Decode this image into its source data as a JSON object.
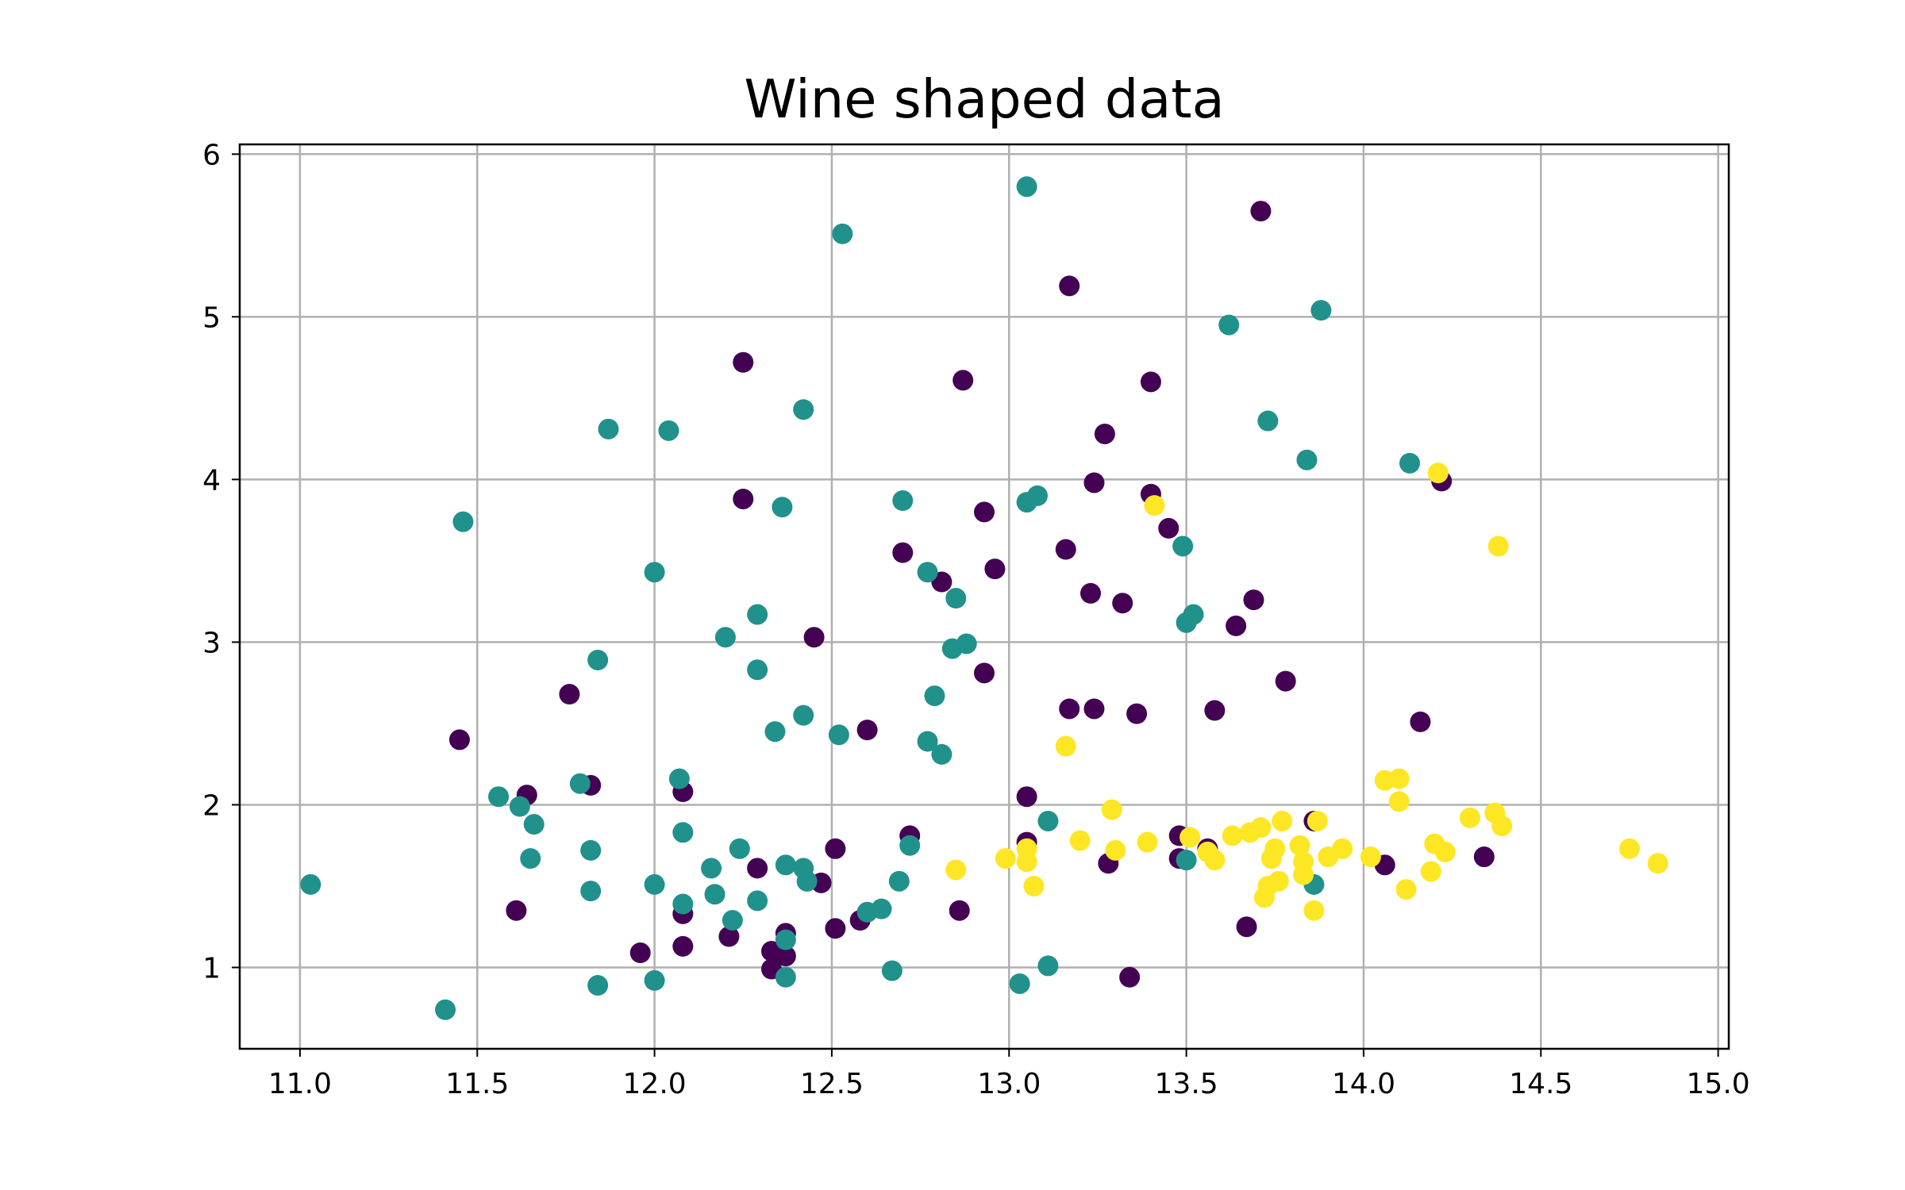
{
  "chart_data": {
    "type": "scatter",
    "title": "Wine shaped data",
    "xlabel": "",
    "ylabel": "",
    "xlim": [
      10.83,
      15.03
    ],
    "ylim": [
      0.5,
      6.06
    ],
    "xticks": [
      11.0,
      11.5,
      12.0,
      12.5,
      13.0,
      13.5,
      14.0,
      14.5,
      15.0
    ],
    "xtick_labels": [
      "11.0",
      "11.5",
      "12.0",
      "12.5",
      "13.0",
      "13.5",
      "14.0",
      "14.5",
      "15.0"
    ],
    "yticks": [
      1,
      2,
      3,
      4,
      5,
      6
    ],
    "ytick_labels": [
      "1",
      "2",
      "3",
      "4",
      "5",
      "6"
    ],
    "grid": true,
    "legend": "none",
    "series": [
      {
        "color": "#440154",
        "points": [
          [
            11.45,
            2.4
          ],
          [
            11.64,
            2.06
          ],
          [
            11.61,
            1.35
          ],
          [
            11.76,
            2.68
          ],
          [
            11.82,
            2.12
          ],
          [
            11.96,
            1.09
          ],
          [
            12.08,
            2.08
          ],
          [
            12.08,
            1.33
          ],
          [
            12.08,
            1.13
          ],
          [
            12.21,
            1.19
          ],
          [
            12.25,
            4.72
          ],
          [
            12.25,
            3.88
          ],
          [
            12.29,
            1.61
          ],
          [
            12.33,
            0.99
          ],
          [
            12.33,
            1.1
          ],
          [
            12.37,
            1.21
          ],
          [
            12.37,
            1.07
          ],
          [
            12.45,
            3.03
          ],
          [
            12.47,
            1.52
          ],
          [
            12.51,
            1.73
          ],
          [
            12.51,
            1.24
          ],
          [
            12.58,
            1.29
          ],
          [
            12.6,
            2.46
          ],
          [
            12.7,
            3.55
          ],
          [
            12.72,
            1.81
          ],
          [
            12.81,
            3.37
          ],
          [
            12.86,
            1.35
          ],
          [
            12.87,
            4.61
          ],
          [
            12.93,
            3.8
          ],
          [
            12.93,
            2.81
          ],
          [
            12.96,
            3.45
          ],
          [
            13.05,
            2.05
          ],
          [
            13.05,
            1.77
          ],
          [
            13.16,
            3.57
          ],
          [
            13.17,
            5.19
          ],
          [
            13.17,
            2.59
          ],
          [
            13.23,
            3.3
          ],
          [
            13.24,
            3.98
          ],
          [
            13.24,
            2.59
          ],
          [
            13.27,
            4.28
          ],
          [
            13.28,
            1.64
          ],
          [
            13.32,
            3.24
          ],
          [
            13.34,
            0.94
          ],
          [
            13.36,
            2.56
          ],
          [
            13.4,
            4.6
          ],
          [
            13.4,
            3.91
          ],
          [
            13.45,
            3.7
          ],
          [
            13.48,
            1.81
          ],
          [
            13.48,
            1.67
          ],
          [
            13.56,
            1.73
          ],
          [
            13.58,
            2.58
          ],
          [
            13.64,
            3.1
          ],
          [
            13.67,
            1.25
          ],
          [
            13.69,
            3.26
          ],
          [
            13.71,
            5.65
          ],
          [
            13.78,
            2.76
          ],
          [
            13.86,
            1.9
          ],
          [
            14.06,
            1.63
          ],
          [
            14.16,
            2.51
          ],
          [
            14.22,
            3.99
          ],
          [
            14.34,
            1.68
          ]
        ]
      },
      {
        "color": "#21918c",
        "points": [
          [
            11.03,
            1.51
          ],
          [
            11.41,
            0.74
          ],
          [
            11.46,
            3.74
          ],
          [
            11.56,
            2.05
          ],
          [
            11.62,
            1.99
          ],
          [
            11.65,
            1.67
          ],
          [
            11.66,
            1.88
          ],
          [
            11.79,
            2.13
          ],
          [
            11.82,
            1.72
          ],
          [
            11.82,
            1.47
          ],
          [
            11.84,
            2.89
          ],
          [
            11.84,
            0.89
          ],
          [
            11.87,
            4.31
          ],
          [
            12.0,
            3.43
          ],
          [
            12.0,
            1.51
          ],
          [
            12.0,
            0.92
          ],
          [
            12.04,
            4.3
          ],
          [
            12.07,
            2.16
          ],
          [
            12.08,
            1.83
          ],
          [
            12.08,
            1.39
          ],
          [
            12.16,
            1.61
          ],
          [
            12.17,
            1.45
          ],
          [
            12.2,
            3.03
          ],
          [
            12.22,
            1.29
          ],
          [
            12.24,
            1.73
          ],
          [
            12.29,
            3.17
          ],
          [
            12.29,
            2.83
          ],
          [
            12.29,
            1.41
          ],
          [
            12.34,
            2.45
          ],
          [
            12.36,
            3.83
          ],
          [
            12.37,
            1.63
          ],
          [
            12.37,
            1.17
          ],
          [
            12.37,
            0.94
          ],
          [
            12.42,
            4.43
          ],
          [
            12.42,
            2.55
          ],
          [
            12.42,
            1.61
          ],
          [
            12.43,
            1.53
          ],
          [
            12.52,
            2.43
          ],
          [
            12.53,
            5.51
          ],
          [
            12.6,
            1.34
          ],
          [
            12.64,
            1.36
          ],
          [
            12.67,
            0.98
          ],
          [
            12.69,
            1.53
          ],
          [
            12.7,
            3.87
          ],
          [
            12.72,
            1.75
          ],
          [
            12.77,
            3.43
          ],
          [
            12.77,
            2.39
          ],
          [
            12.79,
            2.67
          ],
          [
            12.81,
            2.31
          ],
          [
            12.84,
            2.96
          ],
          [
            12.85,
            3.27
          ],
          [
            12.88,
            2.99
          ],
          [
            13.03,
            0.9
          ],
          [
            13.05,
            5.8
          ],
          [
            13.05,
            3.86
          ],
          [
            13.08,
            3.9
          ],
          [
            13.11,
            1.9
          ],
          [
            13.11,
            1.01
          ],
          [
            13.49,
            3.59
          ],
          [
            13.5,
            3.12
          ],
          [
            13.5,
            1.66
          ],
          [
            13.52,
            3.17
          ],
          [
            13.62,
            4.95
          ],
          [
            13.73,
            4.36
          ],
          [
            13.84,
            4.12
          ],
          [
            13.86,
            1.51
          ],
          [
            13.88,
            5.04
          ],
          [
            14.13,
            4.1
          ]
        ]
      },
      {
        "color": "#fde725",
        "points": [
          [
            12.85,
            1.6
          ],
          [
            12.99,
            1.67
          ],
          [
            13.05,
            1.73
          ],
          [
            13.05,
            1.65
          ],
          [
            13.07,
            1.5
          ],
          [
            13.16,
            2.36
          ],
          [
            13.2,
            1.78
          ],
          [
            13.29,
            1.97
          ],
          [
            13.3,
            1.72
          ],
          [
            13.39,
            1.77
          ],
          [
            13.41,
            3.84
          ],
          [
            13.51,
            1.8
          ],
          [
            13.56,
            1.71
          ],
          [
            13.58,
            1.66
          ],
          [
            13.63,
            1.81
          ],
          [
            13.68,
            1.83
          ],
          [
            13.71,
            1.86
          ],
          [
            13.72,
            1.43
          ],
          [
            13.73,
            1.5
          ],
          [
            13.74,
            1.67
          ],
          [
            13.75,
            1.73
          ],
          [
            13.76,
            1.53
          ],
          [
            13.77,
            1.9
          ],
          [
            13.82,
            1.75
          ],
          [
            13.83,
            1.65
          ],
          [
            13.83,
            1.57
          ],
          [
            13.86,
            1.35
          ],
          [
            13.87,
            1.9
          ],
          [
            13.9,
            1.68
          ],
          [
            13.94,
            1.73
          ],
          [
            14.02,
            1.68
          ],
          [
            14.06,
            2.15
          ],
          [
            14.1,
            2.16
          ],
          [
            14.1,
            2.02
          ],
          [
            14.12,
            1.48
          ],
          [
            14.19,
            1.59
          ],
          [
            14.2,
            1.76
          ],
          [
            14.21,
            4.04
          ],
          [
            14.23,
            1.71
          ],
          [
            14.3,
            1.92
          ],
          [
            14.37,
            1.95
          ],
          [
            14.38,
            3.59
          ],
          [
            14.39,
            1.87
          ],
          [
            14.75,
            1.73
          ],
          [
            14.83,
            1.64
          ]
        ]
      }
    ]
  }
}
